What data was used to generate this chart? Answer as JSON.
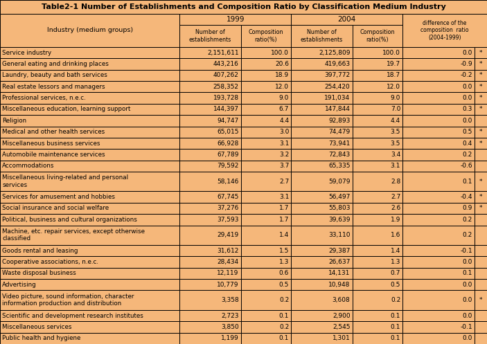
{
  "title": "Table2-1 Number of Establishments and Composition Ratio by Classification Medium Industry",
  "header_bg": "#F5B77A",
  "row_bg": "#F5B77A",
  "border_color": "#000000",
  "title_fontsize": 8.0,
  "header_fontsize": 6.5,
  "data_fontsize": 6.5,
  "col_props": [
    0.332,
    0.113,
    0.093,
    0.113,
    0.093,
    0.133,
    0.023
  ],
  "rows": [
    [
      "Service industry",
      "2,151,611",
      "100.0",
      "2,125,809",
      "100.0",
      "0.0",
      "*"
    ],
    [
      "General eating and drinking places",
      "443,216",
      "20.6",
      "419,663",
      "19.7",
      "-0.9",
      "*"
    ],
    [
      "Laundry, beauty and bath services",
      "407,262",
      "18.9",
      "397,772",
      "18.7",
      "-0.2",
      "*"
    ],
    [
      "Real estate lessors and managers",
      "258,352",
      "12.0",
      "254,420",
      "12.0",
      "0.0",
      "*"
    ],
    [
      "Professional services, n.e.c.",
      "193,728",
      "9.0",
      "191,034",
      "9.0",
      "0.0",
      "*"
    ],
    [
      "Miscellaneous education, learning support",
      "144,397",
      "6.7",
      "147,844",
      "7.0",
      "0.3",
      "*"
    ],
    [
      "Religion",
      "94,747",
      "4.4",
      "92,893",
      "4.4",
      "0.0",
      ""
    ],
    [
      "Medical and other health services",
      "65,015",
      "3.0",
      "74,479",
      "3.5",
      "0.5",
      "*"
    ],
    [
      "Miscellaneous business services",
      "66,928",
      "3.1",
      "73,941",
      "3.5",
      "0.4",
      "*"
    ],
    [
      "Automobile maintenance services",
      "67,789",
      "3.2",
      "72,843",
      "3.4",
      "0.2",
      ""
    ],
    [
      "Accommodations",
      "79,592",
      "3.7",
      "65,335",
      "3.1",
      "-0.6",
      ""
    ],
    [
      "Miscellaneous living-related and personal\nservices",
      "58,146",
      "2.7",
      "59,079",
      "2.8",
      "0.1",
      "*"
    ],
    [
      "Services for amusement and hobbies",
      "67,745",
      "3.1",
      "56,497",
      "2.7",
      "-0.4",
      "*"
    ],
    [
      "Social insurance and social welfare",
      "37,276",
      "1.7",
      "55,803",
      "2.6",
      "0.9",
      "*"
    ],
    [
      "Political, business and cultural organizations",
      "37,593",
      "1.7",
      "39,639",
      "1.9",
      "0.2",
      ""
    ],
    [
      "Machine, etc. repair services, except otherwise\nclassified",
      "29,419",
      "1.4",
      "33,110",
      "1.6",
      "0.2",
      ""
    ],
    [
      "Goods rental and leasing",
      "31,612",
      "1.5",
      "29,387",
      "1.4",
      "-0.1",
      ""
    ],
    [
      "Cooperative associations, n.e.c.",
      "28,434",
      "1.3",
      "26,637",
      "1.3",
      "0.0",
      ""
    ],
    [
      "Waste disposal business",
      "12,119",
      "0.6",
      "14,131",
      "0.7",
      "0.1",
      ""
    ],
    [
      "Advertising",
      "10,779",
      "0.5",
      "10,948",
      "0.5",
      "0.0",
      ""
    ],
    [
      "Video picture, sound information, character\ninformation production and distribution",
      "3,358",
      "0.2",
      "3,608",
      "0.2",
      "0.0",
      "*"
    ],
    [
      "Scientific and development research institutes",
      "2,723",
      "0.1",
      "2,900",
      "0.1",
      "0.0",
      ""
    ],
    [
      "Miscellaneous services",
      "3,850",
      "0.2",
      "2,545",
      "0.1",
      "-0.1",
      ""
    ],
    [
      "Public health and hygiene",
      "1,199",
      "0.1",
      "1,301",
      "0.1",
      "0.0",
      ""
    ]
  ]
}
